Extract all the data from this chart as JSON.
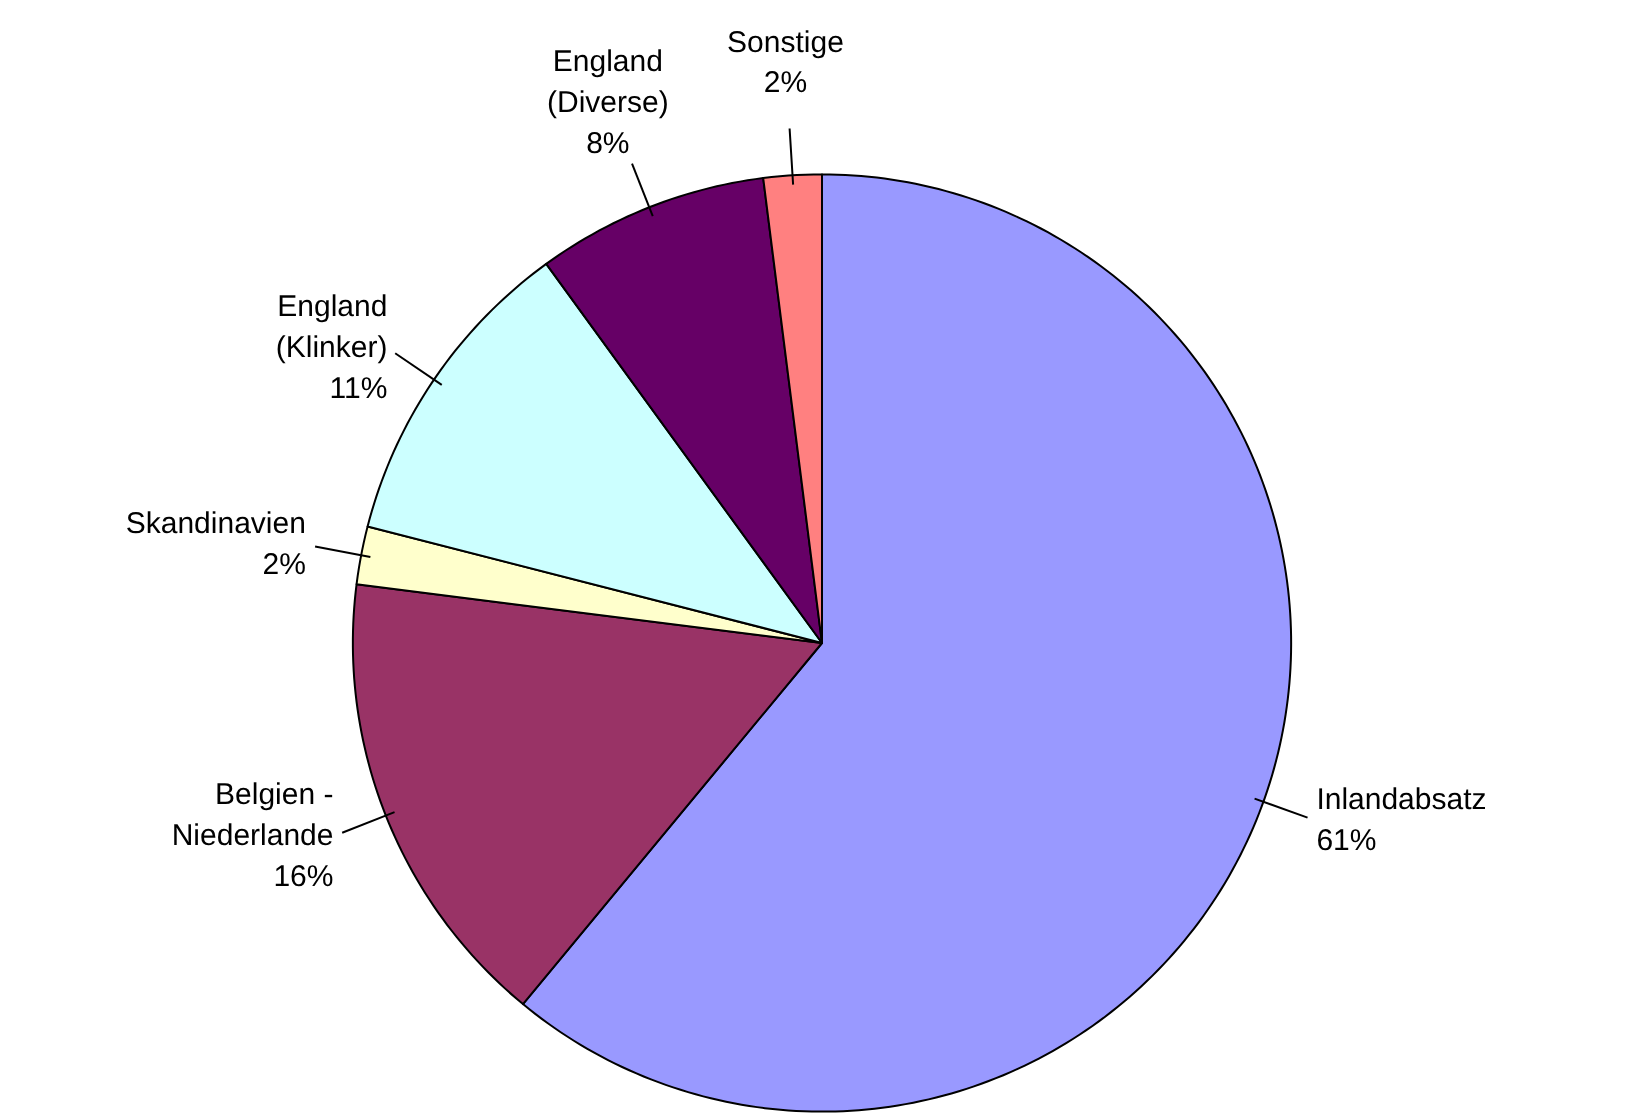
{
  "chart_data": {
    "type": "pie",
    "categories": [
      "Inlandabsatz",
      "Belgien - Niederlande",
      "Skandinavien",
      "England (Klinker)",
      "England (Diverse)",
      "Sonstige"
    ],
    "values": [
      61,
      16,
      2,
      11,
      8,
      2
    ],
    "value_labels": [
      "61%",
      "16%",
      "2%",
      "11%",
      "8%",
      "2%"
    ],
    "colors": [
      "#9999ff",
      "#993366",
      "#ffffcc",
      "#ccffff",
      "#660066",
      "#ff8080"
    ],
    "legend": false
  }
}
